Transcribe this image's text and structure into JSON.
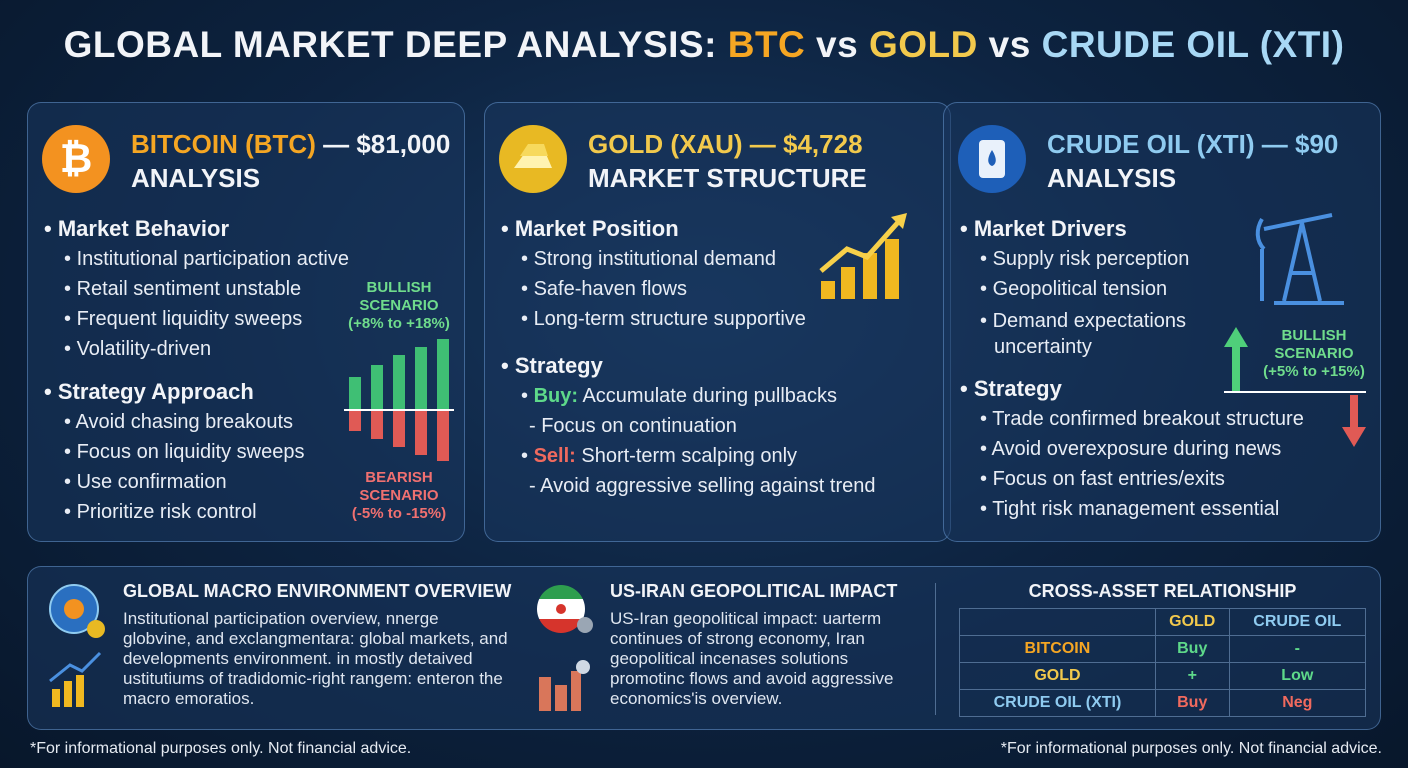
{
  "header": {
    "title_parts": [
      "GLOBAL MARKET DEEP ANALYSIS:",
      "BTC",
      "vs",
      "GOLD",
      "vs",
      "CRUDE OIL (XTI)"
    ]
  },
  "panels": [
    {
      "name": "BITCOIN (BTC)",
      "price": "— $81,000",
      "subtitle": "ANALYSIS",
      "sections": [
        {
          "heading": "Market Behavior",
          "items": [
            "Institutional participation active",
            "Retail sentiment unstable",
            "Frequent liquidity sweeps",
            "Volatility-driven"
          ]
        },
        {
          "heading": "Strategy Approach",
          "items": [
            "Avoid chasing breakouts",
            "Focus on liquidity sweeps",
            "Use confirmation",
            "Prioritize risk control"
          ]
        }
      ],
      "bullish": [
        "BULLISH",
        "SCENARIO",
        "(+8% to +18%)"
      ],
      "bearish": [
        "BEARISH",
        "SCENARIO",
        "(-5% to -15%)"
      ]
    },
    {
      "name": "GOLD (XAU)",
      "price": "— $4,728",
      "subtitle": "MARKET STRUCTURE",
      "sections": [
        {
          "heading": "Market Position",
          "items": [
            "Strong institutional demand",
            "Safe-haven flows",
            "Long-term structure supportive"
          ]
        },
        {
          "heading": "Strategy",
          "items": [
            [
              "Buy:",
              "Accumulate during pullbacks"
            ],
            "- Focus on continuation",
            [
              "Sell:",
              "Short-term scalping only"
            ],
            "- Avoid aggressive selling against trend"
          ]
        }
      ]
    },
    {
      "name": "CRUDE OIL (XTI)",
      "price": "— $90",
      "subtitle": "ANALYSIS",
      "sections": [
        {
          "heading": "Market Drivers",
          "items": [
            "Supply risk perception",
            "Geopolitical tension",
            "Demand expectations uncertainty"
          ]
        },
        {
          "heading": "Strategy",
          "items": [
            "Trade confirmed breakout structure",
            "Avoid overexposure during news",
            "Focus on fast entries/exits",
            "Tight risk management essential"
          ]
        }
      ],
      "bullish": [
        "BULLISH",
        "SCENARIO",
        "(+5% to +15%)"
      ]
    }
  ],
  "bottom": {
    "macro": {
      "title": "GLOBAL MACRO ENVIRONMENT OVERVIEW",
      "body": "Institutional participation overview, nnerge globvine, and exclangmentara: global markets, and developments environment. in mostly detaived ustitutiums of tradidomic-right rangem: enteron the macro emoratios."
    },
    "geo": {
      "title": "US-IRAN GEOPOLITICAL IMPACT",
      "body": "US-Iran geopolitical impact: uarterm continues of strong economy, Iran geopolitical incenases solutions promotinc flows and avoid aggressive economics'is overview."
    },
    "cross": {
      "title": "CROSS-ASSET RELATIONSHIP",
      "columns": [
        "GOLD",
        "CRUDE OIL"
      ],
      "rows": [
        [
          "BITCOIN",
          "Buy",
          "-"
        ],
        [
          "GOLD",
          "+",
          "Low"
        ],
        [
          "CRUDE OIL (XTI)",
          "Buy",
          "Neg"
        ]
      ]
    }
  },
  "footer": {
    "left": "*For informational purposes only. Not financial advice.",
    "right": "*For informational purposes only. Not financial advice."
  }
}
